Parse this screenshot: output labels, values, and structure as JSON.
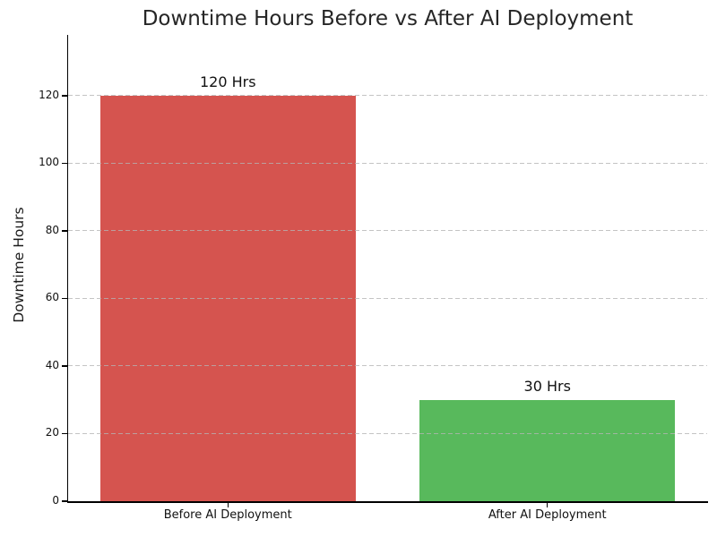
{
  "chart_data": {
    "type": "bar",
    "title": "Downtime Hours Before vs After AI Deployment",
    "ylabel": "Downtime Hours",
    "xlabel": "",
    "categories": [
      "Before AI Deployment",
      "After AI Deployment"
    ],
    "values": [
      120,
      30
    ],
    "bar_labels": [
      "120 Hrs",
      "30 Hrs"
    ],
    "bar_colors": [
      "#d5544f",
      "#58b95c"
    ],
    "yticks": [
      0,
      20,
      40,
      60,
      80,
      100,
      120
    ],
    "ylim": [
      0,
      138
    ],
    "xlim": [
      -0.5,
      1.5
    ],
    "bar_width": 0.8,
    "grid": {
      "axis": "y",
      "style": "dashed",
      "color": "#c7c7c7"
    },
    "legend": "none",
    "background_color": "#ffffff",
    "text_color": "#262626"
  }
}
